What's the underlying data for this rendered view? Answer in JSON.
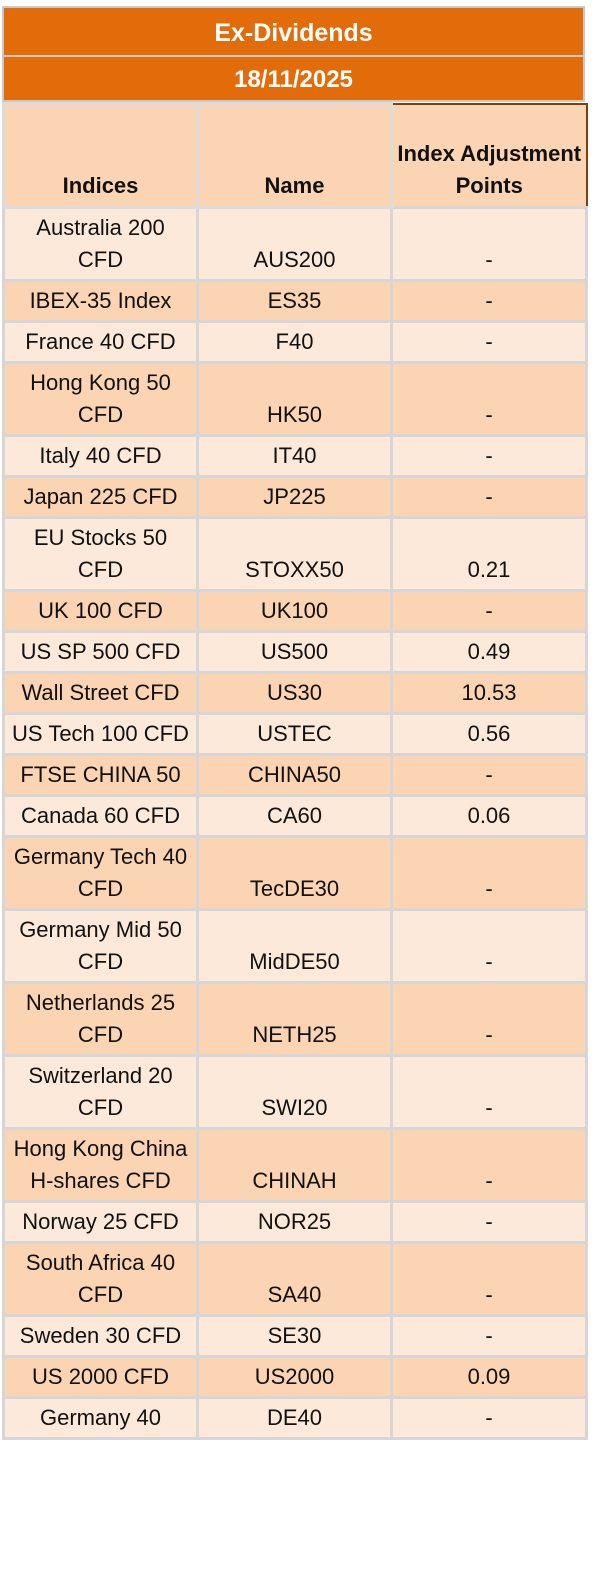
{
  "title": "Ex-Dividends",
  "date": "18/11/2025",
  "headers": {
    "indices": "Indices",
    "name": "Name",
    "points": "Index Adjustment Points"
  },
  "rows": [
    {
      "index": "Australia 200 CFD",
      "name": "AUS200",
      "points": "-"
    },
    {
      "index": "IBEX-35 Index",
      "name": "ES35",
      "points": "-"
    },
    {
      "index": "France 40 CFD",
      "name": "F40",
      "points": "-"
    },
    {
      "index": "Hong Kong 50 CFD",
      "name": "HK50",
      "points": "-"
    },
    {
      "index": "Italy 40 CFD",
      "name": "IT40",
      "points": "-"
    },
    {
      "index": "Japan 225 CFD",
      "name": "JP225",
      "points": "-"
    },
    {
      "index": "EU Stocks 50 CFD",
      "name": "STOXX50",
      "points": "0.21"
    },
    {
      "index": "UK 100 CFD",
      "name": "UK100",
      "points": "-"
    },
    {
      "index": "US SP 500 CFD",
      "name": "US500",
      "points": "0.49"
    },
    {
      "index": "Wall Street CFD",
      "name": "US30",
      "points": "10.53"
    },
    {
      "index": "US Tech 100 CFD",
      "name": "USTEC",
      "points": "0.56"
    },
    {
      "index": "FTSE CHINA 50",
      "name": "CHINA50",
      "points": "-"
    },
    {
      "index": "Canada 60 CFD",
      "name": "CA60",
      "points": "0.06"
    },
    {
      "index": "Germany Tech 40 CFD",
      "name": "TecDE30",
      "points": "-"
    },
    {
      "index": "Germany Mid 50 CFD",
      "name": "MidDE50",
      "points": "-"
    },
    {
      "index": "Netherlands 25 CFD",
      "name": "NETH25",
      "points": "-"
    },
    {
      "index": "Switzerland 20 CFD",
      "name": "SWI20",
      "points": "-"
    },
    {
      "index": "Hong Kong China H-shares CFD",
      "name": "CHINAH",
      "points": "-"
    },
    {
      "index": "Norway 25 CFD",
      "name": "NOR25",
      "points": "-"
    },
    {
      "index": "South Africa 40 CFD",
      "name": "SA40",
      "points": "-"
    },
    {
      "index": "Sweden 30 CFD",
      "name": "SE30",
      "points": "-"
    },
    {
      "index": "US 2000 CFD",
      "name": "US2000",
      "points": "0.09"
    },
    {
      "index": "Germany 40",
      "name": "DE40",
      "points": "-"
    }
  ]
}
